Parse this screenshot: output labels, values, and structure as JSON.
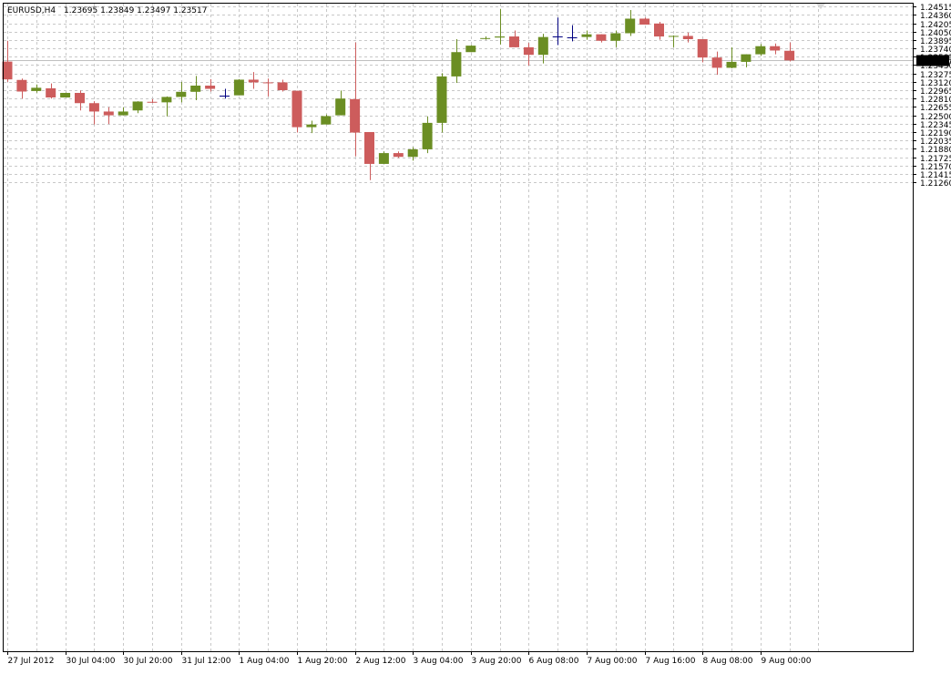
{
  "header": {
    "symbol": "EURUSD,H4",
    "ohlc": "1.23695 1.23849 1.23497 1.23517"
  },
  "current_price_label": "1.23517",
  "colors": {
    "bull": "#6b8e23",
    "bear": "#cd5c5c",
    "doji": "#000080",
    "price_box": "#000000",
    "price_box_text": "#ffffff"
  },
  "chart_data": {
    "type": "candlestick",
    "title": "",
    "ylim": [
      1.12574,
      1.24568
    ],
    "y_ticks": [
      "1.24515",
      "1.24360",
      "1.24205",
      "1.24050",
      "1.23895",
      "1.23740",
      "1.23585",
      "1.23430",
      "1.23275",
      "1.23120",
      "1.22965",
      "1.22810",
      "1.22655",
      "1.22500",
      "1.22345",
      "1.22190",
      "1.22035",
      "1.21880",
      "1.21725",
      "1.21570",
      "1.21415",
      "1.21260"
    ],
    "x_ticks": [
      {
        "index": 0,
        "label": "27 Jul 2012"
      },
      {
        "index": 4,
        "label": "30 Jul 04:00"
      },
      {
        "index": 8,
        "label": "30 Jul 20:00"
      },
      {
        "index": 12,
        "label": "31 Jul 12:00"
      },
      {
        "index": 16,
        "label": "1 Aug 04:00"
      },
      {
        "index": 20,
        "label": "1 Aug 20:00"
      },
      {
        "index": 24,
        "label": "2 Aug 12:00"
      },
      {
        "index": 28,
        "label": "3 Aug 04:00"
      },
      {
        "index": 32,
        "label": "3 Aug 20:00"
      },
      {
        "index": 36,
        "label": "6 Aug 08:00"
      },
      {
        "index": 40,
        "label": "7 Aug 00:00"
      },
      {
        "index": 44,
        "label": "7 Aug 16:00"
      },
      {
        "index": 48,
        "label": "8 Aug 08:00"
      },
      {
        "index": 52,
        "label": "9 Aug 00:00"
      }
    ],
    "grid": true,
    "candles": [
      {
        "o": 1.23495,
        "h": 1.2388,
        "l": 1.2312,
        "c": 1.23165
      },
      {
        "o": 1.23155,
        "h": 1.2318,
        "l": 1.2281,
        "c": 1.2294
      },
      {
        "o": 1.2295,
        "h": 1.2307,
        "l": 1.2292,
        "c": 1.2301
      },
      {
        "o": 1.23,
        "h": 1.2309,
        "l": 1.2281,
        "c": 1.2283
      },
      {
        "o": 1.2283,
        "h": 1.2292,
        "l": 1.2283,
        "c": 1.22915
      },
      {
        "o": 1.22915,
        "h": 1.2296,
        "l": 1.2259,
        "c": 1.22725
      },
      {
        "o": 1.22725,
        "h": 1.2276,
        "l": 1.2233,
        "c": 1.2257
      },
      {
        "o": 1.2257,
        "h": 1.2265,
        "l": 1.2234,
        "c": 1.225
      },
      {
        "o": 1.225,
        "h": 1.2265,
        "l": 1.225,
        "c": 1.2257
      },
      {
        "o": 1.2259,
        "h": 1.2276,
        "l": 1.2254,
        "c": 1.22755
      },
      {
        "o": 1.2275,
        "h": 1.228,
        "l": 1.2273,
        "c": 1.2274
      },
      {
        "o": 1.2274,
        "h": 1.2285,
        "l": 1.2248,
        "c": 1.2284
      },
      {
        "o": 1.2284,
        "h": 1.2312,
        "l": 1.2274,
        "c": 1.22935
      },
      {
        "o": 1.22935,
        "h": 1.2323,
        "l": 1.2278,
        "c": 1.2305
      },
      {
        "o": 1.2305,
        "h": 1.2317,
        "l": 1.2294,
        "c": 1.2299
      },
      {
        "o": 1.2286,
        "h": 1.2299,
        "l": 1.2281,
        "c": 1.2286
      },
      {
        "o": 1.2287,
        "h": 1.2317,
        "l": 1.2287,
        "c": 1.2316
      },
      {
        "o": 1.2316,
        "h": 1.233,
        "l": 1.2299,
        "c": 1.2311
      },
      {
        "o": 1.2311,
        "h": 1.2318,
        "l": 1.2285,
        "c": 1.231
      },
      {
        "o": 1.2311,
        "h": 1.2316,
        "l": 1.2294,
        "c": 1.22965
      },
      {
        "o": 1.22955,
        "h": 1.22955,
        "l": 1.2218,
        "c": 1.2228
      },
      {
        "o": 1.2228,
        "h": 1.224,
        "l": 1.2217,
        "c": 1.2233
      },
      {
        "o": 1.2233,
        "h": 1.22515,
        "l": 1.2233,
        "c": 1.22485
      },
      {
        "o": 1.225,
        "h": 1.2296,
        "l": 1.225,
        "c": 1.2281
      },
      {
        "o": 1.228,
        "h": 1.2385,
        "l": 1.2174,
        "c": 1.2218
      },
      {
        "o": 1.2219,
        "h": 1.2219,
        "l": 1.213,
        "c": 1.216
      },
      {
        "o": 1.216,
        "h": 1.2183,
        "l": 1.216,
        "c": 1.218
      },
      {
        "o": 1.218,
        "h": 1.2183,
        "l": 1.2171,
        "c": 1.2173
      },
      {
        "o": 1.2173,
        "h": 1.2191,
        "l": 1.2166,
        "c": 1.2187
      },
      {
        "o": 1.2187,
        "h": 1.2248,
        "l": 1.218,
        "c": 1.2236
      },
      {
        "o": 1.2236,
        "h": 1.2328,
        "l": 1.2218,
        "c": 1.2322
      },
      {
        "o": 1.2322,
        "h": 1.2391,
        "l": 1.231,
        "c": 1.2367
      },
      {
        "o": 1.2367,
        "h": 1.238,
        "l": 1.2367,
        "c": 1.2379
      },
      {
        "o": 1.2392,
        "h": 1.2396,
        "l": 1.239,
        "c": 1.2393
      },
      {
        "o": 1.2394,
        "h": 1.2447,
        "l": 1.2381,
        "c": 1.2396
      },
      {
        "o": 1.2396,
        "h": 1.2407,
        "l": 1.2376,
        "c": 1.2376
      },
      {
        "o": 1.2376,
        "h": 1.2384,
        "l": 1.2342,
        "c": 1.2362
      },
      {
        "o": 1.2362,
        "h": 1.2401,
        "l": 1.2346,
        "c": 1.2395
      },
      {
        "o": 1.23955,
        "h": 1.2431,
        "l": 1.238,
        "c": 1.23955
      },
      {
        "o": 1.2395,
        "h": 1.2417,
        "l": 1.2387,
        "c": 1.2395
      },
      {
        "o": 1.2395,
        "h": 1.2407,
        "l": 1.239,
        "c": 1.24
      },
      {
        "o": 1.24,
        "h": 1.24,
        "l": 1.2385,
        "c": 1.2388
      },
      {
        "o": 1.2388,
        "h": 1.2407,
        "l": 1.2376,
        "c": 1.2402
      },
      {
        "o": 1.2402,
        "h": 1.2445,
        "l": 1.2397,
        "c": 1.2429
      },
      {
        "o": 1.2429,
        "h": 1.2431,
        "l": 1.2418,
        "c": 1.2418
      },
      {
        "o": 1.242,
        "h": 1.2423,
        "l": 1.239,
        "c": 1.2396
      },
      {
        "o": 1.2396,
        "h": 1.2398,
        "l": 1.2376,
        "c": 1.2397
      },
      {
        "o": 1.2397,
        "h": 1.2403,
        "l": 1.2385,
        "c": 1.2391
      },
      {
        "o": 1.2391,
        "h": 1.2391,
        "l": 1.2348,
        "c": 1.2357
      },
      {
        "o": 1.2357,
        "h": 1.2368,
        "l": 1.2325,
        "c": 1.2338
      },
      {
        "o": 1.2338,
        "h": 1.2376,
        "l": 1.2337,
        "c": 1.2349
      },
      {
        "o": 1.2349,
        "h": 1.2363,
        "l": 1.2339,
        "c": 1.2363
      },
      {
        "o": 1.2363,
        "h": 1.2382,
        "l": 1.236,
        "c": 1.2378
      },
      {
        "o": 1.2378,
        "h": 1.2383,
        "l": 1.2363,
        "c": 1.237
      },
      {
        "o": 1.23695,
        "h": 1.23849,
        "l": 1.23497,
        "c": 1.23517
      }
    ]
  }
}
